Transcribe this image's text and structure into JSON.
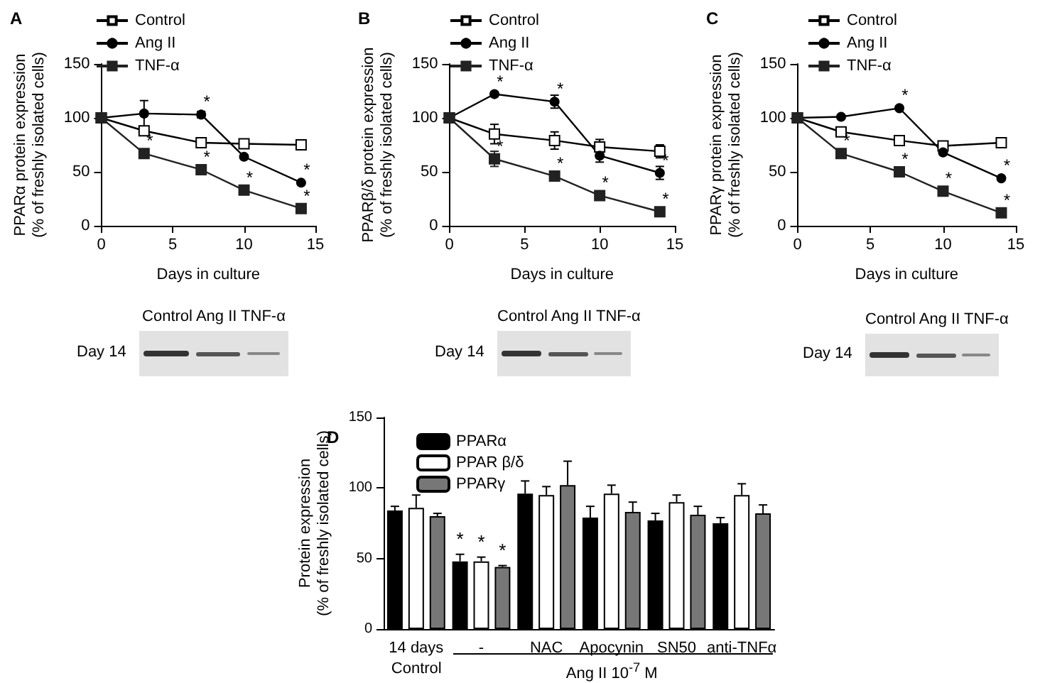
{
  "chart_data": [
    {
      "type": "line",
      "title": "A",
      "xlabel": "Days in culture",
      "ylabel": "PPARα protein expression\n(% of freshly isolated cells)",
      "x": [
        0,
        3,
        7,
        10,
        14
      ],
      "xlim": [
        0,
        15
      ],
      "xticks": [
        0,
        5,
        10,
        15
      ],
      "ylim": [
        0,
        150
      ],
      "yticks": [
        0,
        50,
        100,
        150
      ],
      "grid": false,
      "legend": "top left",
      "series": [
        {
          "name": "Control",
          "color": "#000000",
          "marker": "square",
          "values": [
            100,
            88,
            77,
            76,
            75
          ]
        },
        {
          "name": "Ang II",
          "color": "#000000",
          "marker": "circle",
          "values": [
            100,
            104,
            103,
            64,
            40
          ],
          "errors": [
            null,
            12,
            3,
            null,
            null
          ]
        },
        {
          "name": "TNF-α",
          "color": "#222222",
          "marker": "square",
          "values": [
            100,
            67,
            52,
            33,
            16
          ]
        }
      ],
      "annotations": [
        {
          "text": "*",
          "x": 3,
          "y": 67
        },
        {
          "text": "*",
          "x": 7,
          "y": 103
        },
        {
          "text": "*",
          "x": 7,
          "y": 52
        },
        {
          "text": "*",
          "x": 10,
          "y": 33
        },
        {
          "text": "*",
          "x": 14,
          "y": 40
        },
        {
          "text": "*",
          "x": 14,
          "y": 16
        },
        "Control Ang II TNF-α",
        "Day 14"
      ]
    },
    {
      "type": "line",
      "title": "B",
      "xlabel": "Days in culture",
      "ylabel": "PPARβ/δ protein expression\n(% of freshly isolated cells)",
      "x": [
        0,
        3,
        7,
        10,
        14
      ],
      "xlim": [
        0,
        15
      ],
      "xticks": [
        0,
        5,
        10,
        15
      ],
      "ylim": [
        0,
        150
      ],
      "yticks": [
        0,
        50,
        100,
        150
      ],
      "grid": false,
      "legend": "top left",
      "series": [
        {
          "name": "Control",
          "color": "#000000",
          "marker": "square",
          "values": [
            100,
            85,
            79,
            73,
            69
          ],
          "errors": [
            null,
            9,
            8,
            7,
            6
          ]
        },
        {
          "name": "Ang II",
          "color": "#000000",
          "marker": "circle",
          "values": [
            100,
            122,
            115,
            65,
            49
          ],
          "errors": [
            null,
            2,
            6,
            6,
            6
          ]
        },
        {
          "name": "TNF-α",
          "color": "#222222",
          "marker": "square",
          "values": [
            100,
            62,
            46,
            28,
            13
          ],
          "errors": [
            null,
            7,
            4,
            2,
            1
          ]
        }
      ],
      "annotations": [
        {
          "text": "*",
          "x": 3,
          "y": 122
        },
        {
          "text": "*",
          "x": 7,
          "y": 115
        },
        {
          "text": "*",
          "x": 3,
          "y": 62
        },
        {
          "text": "*",
          "x": 7,
          "y": 46
        },
        {
          "text": "*",
          "x": 10,
          "y": 28
        },
        {
          "text": "*",
          "x": 14,
          "y": 49
        },
        {
          "text": "*",
          "x": 14,
          "y": 13
        },
        "Control Ang II TNF-α",
        "Day 14"
      ]
    },
    {
      "type": "line",
      "title": "C",
      "xlabel": "Days in culture",
      "ylabel": "PPARγ protein expression\n(% of freshly isolated cells)",
      "x": [
        0,
        3,
        7,
        10,
        14
      ],
      "xlim": [
        0,
        15
      ],
      "xticks": [
        0,
        5,
        10,
        15
      ],
      "ylim": [
        0,
        150
      ],
      "yticks": [
        0,
        50,
        100,
        150
      ],
      "grid": false,
      "legend": "top left",
      "series": [
        {
          "name": "Control",
          "color": "#000000",
          "marker": "square",
          "values": [
            100,
            87,
            79,
            74,
            77
          ]
        },
        {
          "name": "Ang II",
          "color": "#000000",
          "marker": "circle",
          "values": [
            100,
            101,
            109,
            68,
            44
          ]
        },
        {
          "name": "TNF-α",
          "color": "#222222",
          "marker": "square",
          "values": [
            100,
            67,
            50,
            32,
            12
          ]
        }
      ],
      "annotations": [
        {
          "text": "*",
          "x": 3,
          "y": 67
        },
        {
          "text": "*",
          "x": 7,
          "y": 109
        },
        {
          "text": "*",
          "x": 7,
          "y": 50
        },
        {
          "text": "*",
          "x": 10,
          "y": 32
        },
        {
          "text": "*",
          "x": 14,
          "y": 44
        },
        {
          "text": "*",
          "x": 14,
          "y": 12
        },
        "Control Ang II TNF-α",
        "Day 14"
      ]
    },
    {
      "type": "bar",
      "title": "D",
      "ylabel": "Protein expression\n(% of freshly isolated cells)",
      "categories": [
        "14 days",
        "-",
        "NAC",
        "Apocynin",
        "SN50",
        "anti-TNFα"
      ],
      "ylim": [
        0,
        150
      ],
      "yticks": [
        0,
        50,
        100,
        150
      ],
      "grid": false,
      "legend": "top left",
      "series": [
        {
          "name": "PPARα",
          "color": "#000000",
          "values": [
            84,
            48,
            96,
            79,
            77,
            75
          ],
          "errors": [
            3,
            5,
            9,
            8,
            5,
            4
          ]
        },
        {
          "name": "PPAR β/δ",
          "color": "#ffffff",
          "values": [
            86,
            48,
            95,
            96,
            90,
            95
          ],
          "errors": [
            9,
            3,
            6,
            6,
            5,
            8
          ]
        },
        {
          "name": "PPARγ",
          "color": "#777777",
          "values": [
            80,
            44,
            102,
            83,
            81,
            82
          ],
          "errors": [
            2,
            1,
            17,
            7,
            6,
            6
          ]
        }
      ],
      "annotations": [
        {
          "text": "*",
          "x": "-",
          "y": 48
        },
        {
          "text": "*",
          "x": "-",
          "y": 48
        },
        {
          "text": "*",
          "x": "-",
          "y": 44
        },
        "Control",
        "Ang II 10$^{-7}$ M"
      ]
    }
  ]
}
